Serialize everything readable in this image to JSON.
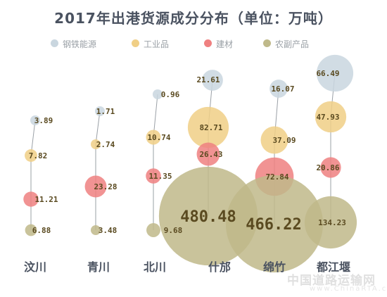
{
  "chart_data": {
    "type": "scatter",
    "title": "2017年出港货源成分分布（单位：万吨）",
    "unit": "万吨",
    "categories": [
      "汶川",
      "青川",
      "北川",
      "什邡",
      "绵竹",
      "都江堰"
    ],
    "series": [
      {
        "name": "钢铁能源",
        "color": "#c9d6df",
        "values": [
          3.89,
          1.71,
          0.96,
          21.61,
          16.07,
          66.49
        ]
      },
      {
        "name": "工业品",
        "color": "#f0cf86",
        "values": [
          7.82,
          2.74,
          10.74,
          82.71,
          37.09,
          47.93
        ]
      },
      {
        "name": "建材",
        "color": "#ef8080",
        "values": [
          11.21,
          23.28,
          11.35,
          26.43,
          72.84,
          20.86
        ]
      },
      {
        "name": "农副产品",
        "color": "#bfb98a",
        "values": [
          6.88,
          3.48,
          9.68,
          480.48,
          466.22,
          134.23
        ]
      }
    ],
    "legend_position": "top",
    "grid": false
  },
  "legend_icon_colors": [
    "#c9d6df",
    "#f0cf86",
    "#ef8080",
    "#bfb98a"
  ],
  "watermark": {
    "text": "中国道路运输网",
    "sub": "www.ChinaRTA.com"
  }
}
